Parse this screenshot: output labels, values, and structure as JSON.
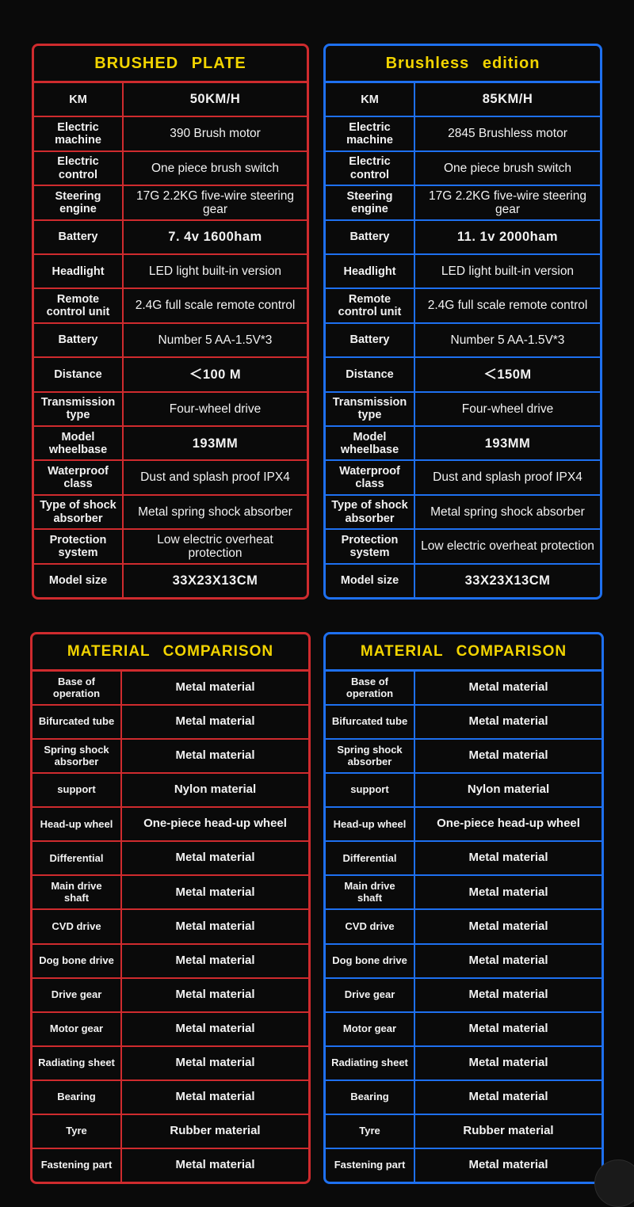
{
  "colors": {
    "background": "#0a0a0a",
    "text": "#f2f2f2",
    "red_accent": "#cf2b2e",
    "blue_accent": "#1e70f0",
    "title_yellow": "#f2d400"
  },
  "spec_tables": [
    {
      "id": "brushed",
      "title": "BRUSHED PLATE",
      "accent": "#cf2b2e",
      "rows": [
        {
          "label": "KM",
          "value": "50KM/H",
          "strong": true
        },
        {
          "label": "Electric machine",
          "value": "390 Brush motor"
        },
        {
          "label": "Electric control",
          "value": "One piece brush switch"
        },
        {
          "label": "Steering engine",
          "value": "17G 2.2KG five-wire steering gear"
        },
        {
          "label": "Battery",
          "value": "7. 4v 1600ham",
          "strong": true
        },
        {
          "label": "Headlight",
          "value": "LED light built-in version"
        },
        {
          "label": "Remote control unit",
          "value": "2.4G full scale remote control"
        },
        {
          "label": "Battery",
          "value": "Number 5 AA-1.5V*3"
        },
        {
          "label": "Distance",
          "value": "＜100 M",
          "strong": true
        },
        {
          "label": "Transmission type",
          "value": "Four-wheel drive"
        },
        {
          "label": "Model wheelbase",
          "value": "193MM",
          "strong": true
        },
        {
          "label": "Waterproof class",
          "value": "Dust and splash proof IPX4"
        },
        {
          "label": "Type of shock absorber",
          "value": "Metal spring shock absorber"
        },
        {
          "label": "Protection system",
          "value": "Low electric overheat protection"
        },
        {
          "label": "Model size",
          "value": "33X23X13CM",
          "strong": true
        }
      ]
    },
    {
      "id": "brushless",
      "title": "Brushless edition",
      "accent": "#1e70f0",
      "rows": [
        {
          "label": "KM",
          "value": "85KM/H",
          "strong": true
        },
        {
          "label": "Electric machine",
          "value": "2845 Brushless motor"
        },
        {
          "label": "Electric control",
          "value": "One piece brush switch"
        },
        {
          "label": "Steering engine",
          "value": "17G 2.2KG five-wire steering gear"
        },
        {
          "label": "Battery",
          "value": "11. 1v 2000ham",
          "strong": true
        },
        {
          "label": "Headlight",
          "value": "LED light built-in version"
        },
        {
          "label": "Remote control unit",
          "value": "2.4G full scale remote control"
        },
        {
          "label": "Battery",
          "value": "Number 5 AA-1.5V*3"
        },
        {
          "label": "Distance",
          "value": "＜150M",
          "strong": true
        },
        {
          "label": "Transmission type",
          "value": "Four-wheel drive"
        },
        {
          "label": "Model wheelbase",
          "value": "193MM",
          "strong": true
        },
        {
          "label": "Waterproof class",
          "value": "Dust and splash proof IPX4"
        },
        {
          "label": "Type of shock absorber",
          "value": "Metal spring shock absorber"
        },
        {
          "label": "Protection system",
          "value": "Low electric overheat protection"
        },
        {
          "label": "Model size",
          "value": "33X23X13CM",
          "strong": true
        }
      ]
    }
  ],
  "material_tables": [
    {
      "id": "material-brushed",
      "title": "MATERIAL COMPARISON",
      "accent": "#cf2b2e",
      "rows": [
        {
          "label": "Base of operation",
          "value": "Metal material"
        },
        {
          "label": "Bifurcated tube",
          "value": "Metal material"
        },
        {
          "label": "Spring shock absorber",
          "value": "Metal material"
        },
        {
          "label": "support",
          "value": "Nylon material"
        },
        {
          "label": "Head-up wheel",
          "value": "One-piece head-up wheel"
        },
        {
          "label": "Differential",
          "value": "Metal material"
        },
        {
          "label": "Main drive shaft",
          "value": "Metal material"
        },
        {
          "label": "CVD drive",
          "value": "Metal material"
        },
        {
          "label": "Dog bone drive",
          "value": "Metal material"
        },
        {
          "label": "Drive gear",
          "value": "Metal material"
        },
        {
          "label": "Motor gear",
          "value": "Metal material"
        },
        {
          "label": "Radiating sheet",
          "value": "Metal material"
        },
        {
          "label": "Bearing",
          "value": "Metal material"
        },
        {
          "label": "Tyre",
          "value": "Rubber material"
        },
        {
          "label": "Fastening part",
          "value": "Metal material"
        }
      ]
    },
    {
      "id": "material-brushless",
      "title": "MATERIAL COMPARISON",
      "accent": "#1e70f0",
      "rows": [
        {
          "label": "Base of operation",
          "value": "Metal material"
        },
        {
          "label": "Bifurcated tube",
          "value": "Metal material"
        },
        {
          "label": "Spring shock absorber",
          "value": "Metal material"
        },
        {
          "label": "support",
          "value": "Nylon material"
        },
        {
          "label": "Head-up wheel",
          "value": "One-piece head-up wheel"
        },
        {
          "label": "Differential",
          "value": "Metal material"
        },
        {
          "label": "Main drive shaft",
          "value": "Metal material"
        },
        {
          "label": "CVD drive",
          "value": "Metal material"
        },
        {
          "label": "Dog bone drive",
          "value": "Metal material"
        },
        {
          "label": "Drive gear",
          "value": "Metal material"
        },
        {
          "label": "Motor gear",
          "value": "Metal material"
        },
        {
          "label": "Radiating sheet",
          "value": "Metal material"
        },
        {
          "label": "Bearing",
          "value": "Metal material"
        },
        {
          "label": "Tyre",
          "value": "Rubber material"
        },
        {
          "label": "Fastening part",
          "value": "Metal material"
        }
      ]
    }
  ]
}
